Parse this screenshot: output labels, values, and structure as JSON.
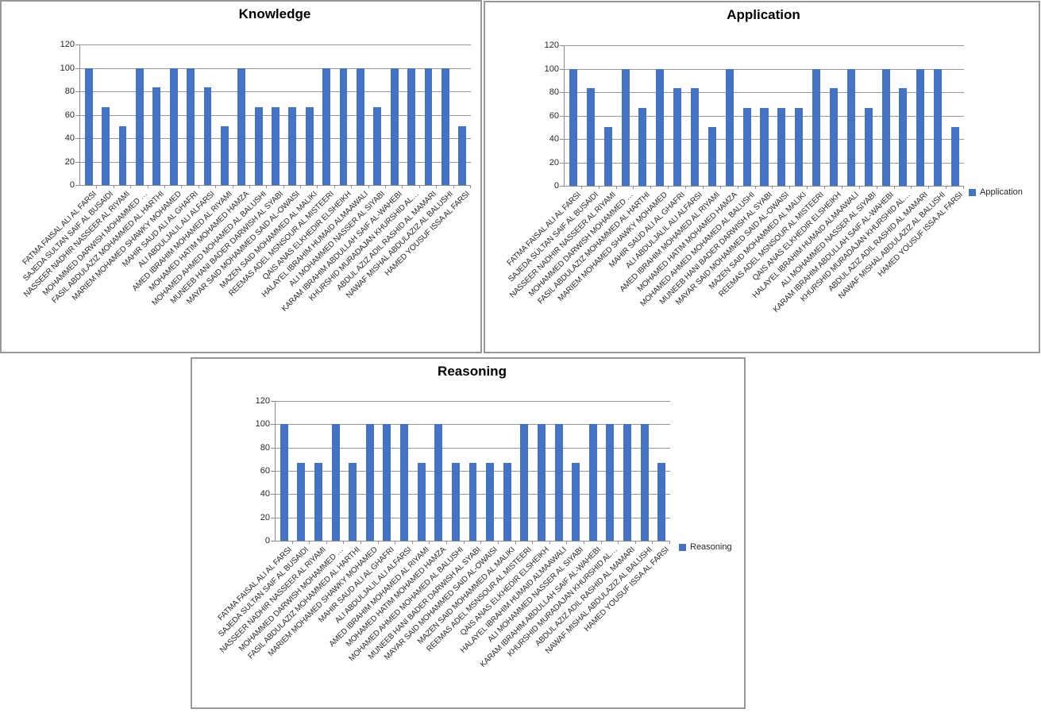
{
  "page": {
    "background": "#ffffff"
  },
  "colors": {
    "bar_fill": "#4472C4",
    "gridline": "#979797",
    "axis_line": "#8c8c8c",
    "box_border": "#979797",
    "label_text": "#262626",
    "title_text": "#000000"
  },
  "chart_data": [
    {
      "type": "bar",
      "title": "Knowledge",
      "legend": null,
      "legend_position": null,
      "grid": true,
      "xlabel": "",
      "ylabel": "",
      "ylim": [
        0,
        120
      ],
      "yticks": [
        0,
        20,
        40,
        60,
        80,
        100,
        120
      ],
      "categories": [
        "FATMA FAISAL ALI AL FARSI",
        "SAJEDA SULTAN SAIF AL BUSAIDI",
        "NASSEER NADHIR NASSEER AL RIYAMI",
        "MOHAMMED DARWISH MOHAMMED …",
        "FASIL ABDULAZIZ MOHAMMED AL HARTHI",
        "MARIEM MOHAMED SHAWKY MOHAMED",
        "MAHIR SAUD ALI AL GHAFRI",
        "ALI ABDULJALIL ALI ALFARSI",
        "AMED IBRAHIM MOHAMED AL RIYAMI",
        "MOHAMED HATIM MOHAMED HAMZA",
        "MOHAMED AHMED MOHAMED AL BALUSHI",
        "MUNEEB HANI BADER DARWISH AL SYABI",
        "MAYAR SAID MOHAMMED SAID AL-OWAISI",
        "MAZEN SAID MOHAMMED AL MALIKI",
        "REEMAS ADEL MSNSOUR AL MISTEERI",
        "QAIS ANAS ELKHEDIR ELSHEIKH",
        "HALAYEL IBRAHIM HUMAID ALMAAWALI",
        "ALI MOHAMMED NASSER AL SIYABI",
        "KARAM IBRAHIM ABDULLAH SAIF AL-WAHEBI",
        "KHURSHID MURADAJAN KHURSHID AL…",
        "ABDUL AZIZ ADIL RASHID AL MAMARI",
        "NAWAF MISHAL ABDULAZIZ AL BALUSHI",
        "HAMED YOUSUF ISSA AL FARSI"
      ],
      "series": [
        {
          "name": "Knowledge",
          "values": [
            100,
            66.7,
            50,
            100,
            83.3,
            100,
            100,
            83.3,
            50,
            100,
            66.7,
            66.7,
            66.7,
            66.7,
            100,
            100,
            100,
            66.7,
            100,
            100,
            100,
            100,
            50
          ]
        }
      ]
    },
    {
      "type": "bar",
      "title": "Application",
      "legend": "Application",
      "legend_position": "right",
      "grid": true,
      "xlabel": "",
      "ylabel": "",
      "ylim": [
        0,
        120
      ],
      "yticks": [
        0,
        20,
        40,
        60,
        80,
        100,
        120
      ],
      "categories": [
        "FATMA FAISAL ALI AL FARSI",
        "SAJEDA SULTAN SAIF AL BUSAIDI",
        "NASSEER NADHIR NASSEER AL RIYAMI",
        "MOHAMMED DARWISH MOHAMMED …",
        "FASIL ABDULAZIZ MOHAMMED AL HARTHI",
        "MARIEM MOHAMED SHAWKY MOHAMED",
        "MAHIR SAUD ALI AL GHAFRI",
        "ALI ABDULJALIL ALI ALFARSI",
        "AMED IBRAHIM MOHAMED AL RIYAMI",
        "MOHAMED HATIM MOHAMED HAMZA",
        "MOHAMED AHMED MOHAMED AL BALUSHI",
        "MUNEEB HANI BADER DARWISH AL SYABI",
        "MAYAR SAID MOHAMMED SAID AL-OWAISI",
        "MAZEN SAID MOHAMMED AL MALIKI",
        "REEMAS ADEL MSNSOUR AL MISTEERI",
        "QAIS ANAS ELKHEDIR ELSHEIKH",
        "HALAYEL IBRAHIM HUMAID ALMAAWALI",
        "ALI MOHAMMED NASSER AL SIYABI",
        "KARAM IBRAHIM ABDULLAH SAIF AL-WAHEBI",
        "KHURSHID MURADAJAN KHURSHID AL…",
        "ABDUL AZIZ ADIL RASHID AL MAMARI",
        "NAWAF MISHAL ABDULAZIZ AL BALUSHI",
        "HAMED YOUSUF ISSA AL FARSI"
      ],
      "series": [
        {
          "name": "Application",
          "values": [
            100,
            83.3,
            50,
            100,
            66.7,
            100,
            83.3,
            83.3,
            50,
            100,
            66.7,
            66.7,
            66.7,
            66.7,
            100,
            83.3,
            100,
            66.7,
            100,
            83.3,
            100,
            100,
            50
          ]
        }
      ]
    },
    {
      "type": "bar",
      "title": "Reasoning",
      "legend": "Reasoning",
      "legend_position": "right",
      "grid": true,
      "xlabel": "",
      "ylabel": "",
      "ylim": [
        0,
        120
      ],
      "yticks": [
        0,
        20,
        40,
        60,
        80,
        100,
        120
      ],
      "categories": [
        "FATMA FAISAL ALI AL FARSI",
        "SAJEDA SULTAN SAIF AL BUSAIDI",
        "NASSEER NADHIR NASSEER AL RIYAMI",
        "MOHAMMED DARWISH MOHAMMED …",
        "FASIL ABDULAZIZ MOHAMMED AL HARTHI",
        "MARIEM MOHAMED SHAWKY MOHAMED",
        "MAHIR SAUD ALI AL GHAFRI",
        "ALI ABDULJALIL ALI ALFARSI",
        "AMED IBRAHIM MOHAMED AL RIYAMI",
        "MOHAMED HATIM MOHAMED HAMZA",
        "MOHAMED AHMED MOHAMED AL BALUSHI",
        "MUNEEB HANI BADER DARWISH AL SYABI",
        "MAYAR SAID MOHAMMED SAID AL-OWAISI",
        "MAZEN SAID MOHAMMED AL MALIKI",
        "REEMAS ADEL MSNSOUR AL MISTEERI",
        "QAIS ANAS ELKHEDIR ELSHEIKH",
        "HALAYEL IBRAHIM HUMAID ALMAAWALI",
        "ALI MOHAMMED NASSER AL SIYABI",
        "KARAM IBRAHIM ABDULLAH SAIF AL-WAHEBI",
        "KHURSHID MURADAJAN KHURSHID AL…",
        "ABDUL AZIZ ADIL RASHID AL MAMARI",
        "NAWAF MISHAL ABDULAZIZ AL BALUSHI",
        "HAMED YOUSUF ISSA AL FARSI"
      ],
      "series": [
        {
          "name": "Reasoning",
          "values": [
            100,
            66.7,
            66.7,
            100,
            66.7,
            100,
            100,
            100,
            66.7,
            100,
            66.7,
            66.7,
            66.7,
            66.7,
            100,
            100,
            100,
            66.7,
            100,
            100,
            100,
            100,
            66.7
          ]
        }
      ]
    }
  ]
}
